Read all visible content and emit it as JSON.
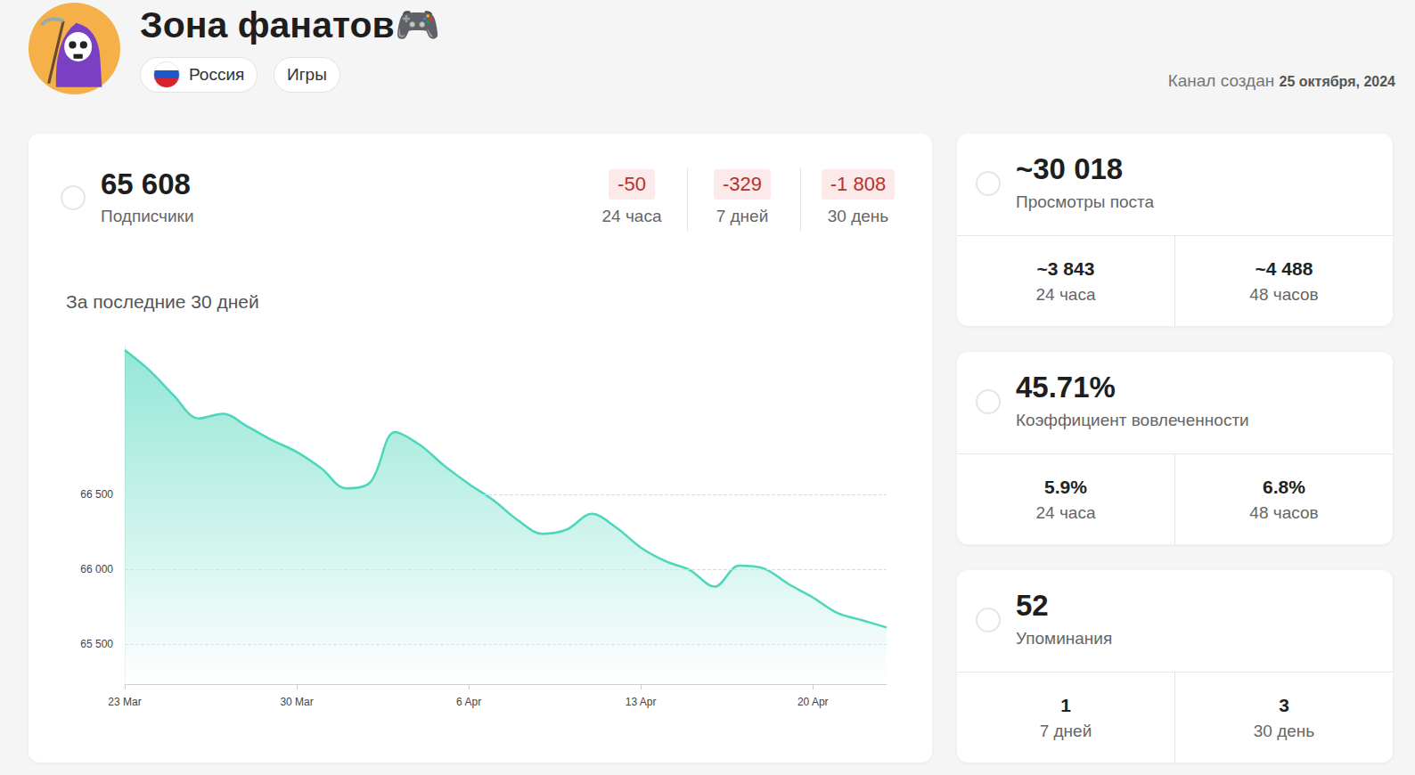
{
  "header": {
    "title": "Зона фанатов🎮",
    "tags": [
      "Россия",
      "Игры"
    ],
    "created_label": "Канал создан",
    "created_date": "25 октября, 2024"
  },
  "subscribers": {
    "value": "65 608",
    "label": "Подписчики",
    "changes": [
      {
        "value": "-50",
        "period": "24 часа"
      },
      {
        "value": "-329",
        "period": "7 дней"
      },
      {
        "value": "-1 808",
        "period": "30 день"
      }
    ]
  },
  "stats": [
    {
      "value": "~30 018",
      "label": "Просмотры поста",
      "sub": [
        {
          "value": "~3 843",
          "period": "24 часа"
        },
        {
          "value": "~4 488",
          "period": "48 часов"
        }
      ]
    },
    {
      "value": "45.71%",
      "label": "Коэффициент вовлеченности",
      "sub": [
        {
          "value": "5.9%",
          "period": "24 часа"
        },
        {
          "value": "6.8%",
          "period": "48 часов"
        }
      ]
    },
    {
      "value": "52",
      "label": "Упоминания",
      "sub": [
        {
          "value": "1",
          "period": "7 дней"
        },
        {
          "value": "3",
          "period": "30 день"
        }
      ]
    }
  ],
  "chart_data": {
    "type": "line",
    "title": "За последние 30 дней",
    "categories": [
      "23 Mar",
      null,
      null,
      null,
      null,
      null,
      null,
      "30 Mar",
      null,
      null,
      null,
      null,
      null,
      null,
      "6 Apr",
      null,
      null,
      null,
      null,
      null,
      null,
      "13 Apr",
      null,
      null,
      null,
      null,
      null,
      null,
      "20 Apr",
      null,
      null,
      null
    ],
    "values": [
      67470,
      67335,
      67165,
      67012,
      67043,
      66957,
      66866,
      66787,
      66677,
      66543,
      66585,
      66921,
      66835,
      66695,
      66573,
      66463,
      66329,
      66238,
      66268,
      66372,
      66280,
      66146,
      66055,
      65994,
      65884,
      66024,
      66006,
      65902,
      65811,
      65707,
      65659,
      65610
    ],
    "color": "#4dd6bb",
    "ylim": [
      65230,
      67500
    ],
    "yticks": [
      {
        "value": 65500,
        "label": "65 500"
      },
      {
        "value": 66000,
        "label": "66 000"
      },
      {
        "value": 66500,
        "label": "66 500"
      }
    ],
    "grid": true
  }
}
